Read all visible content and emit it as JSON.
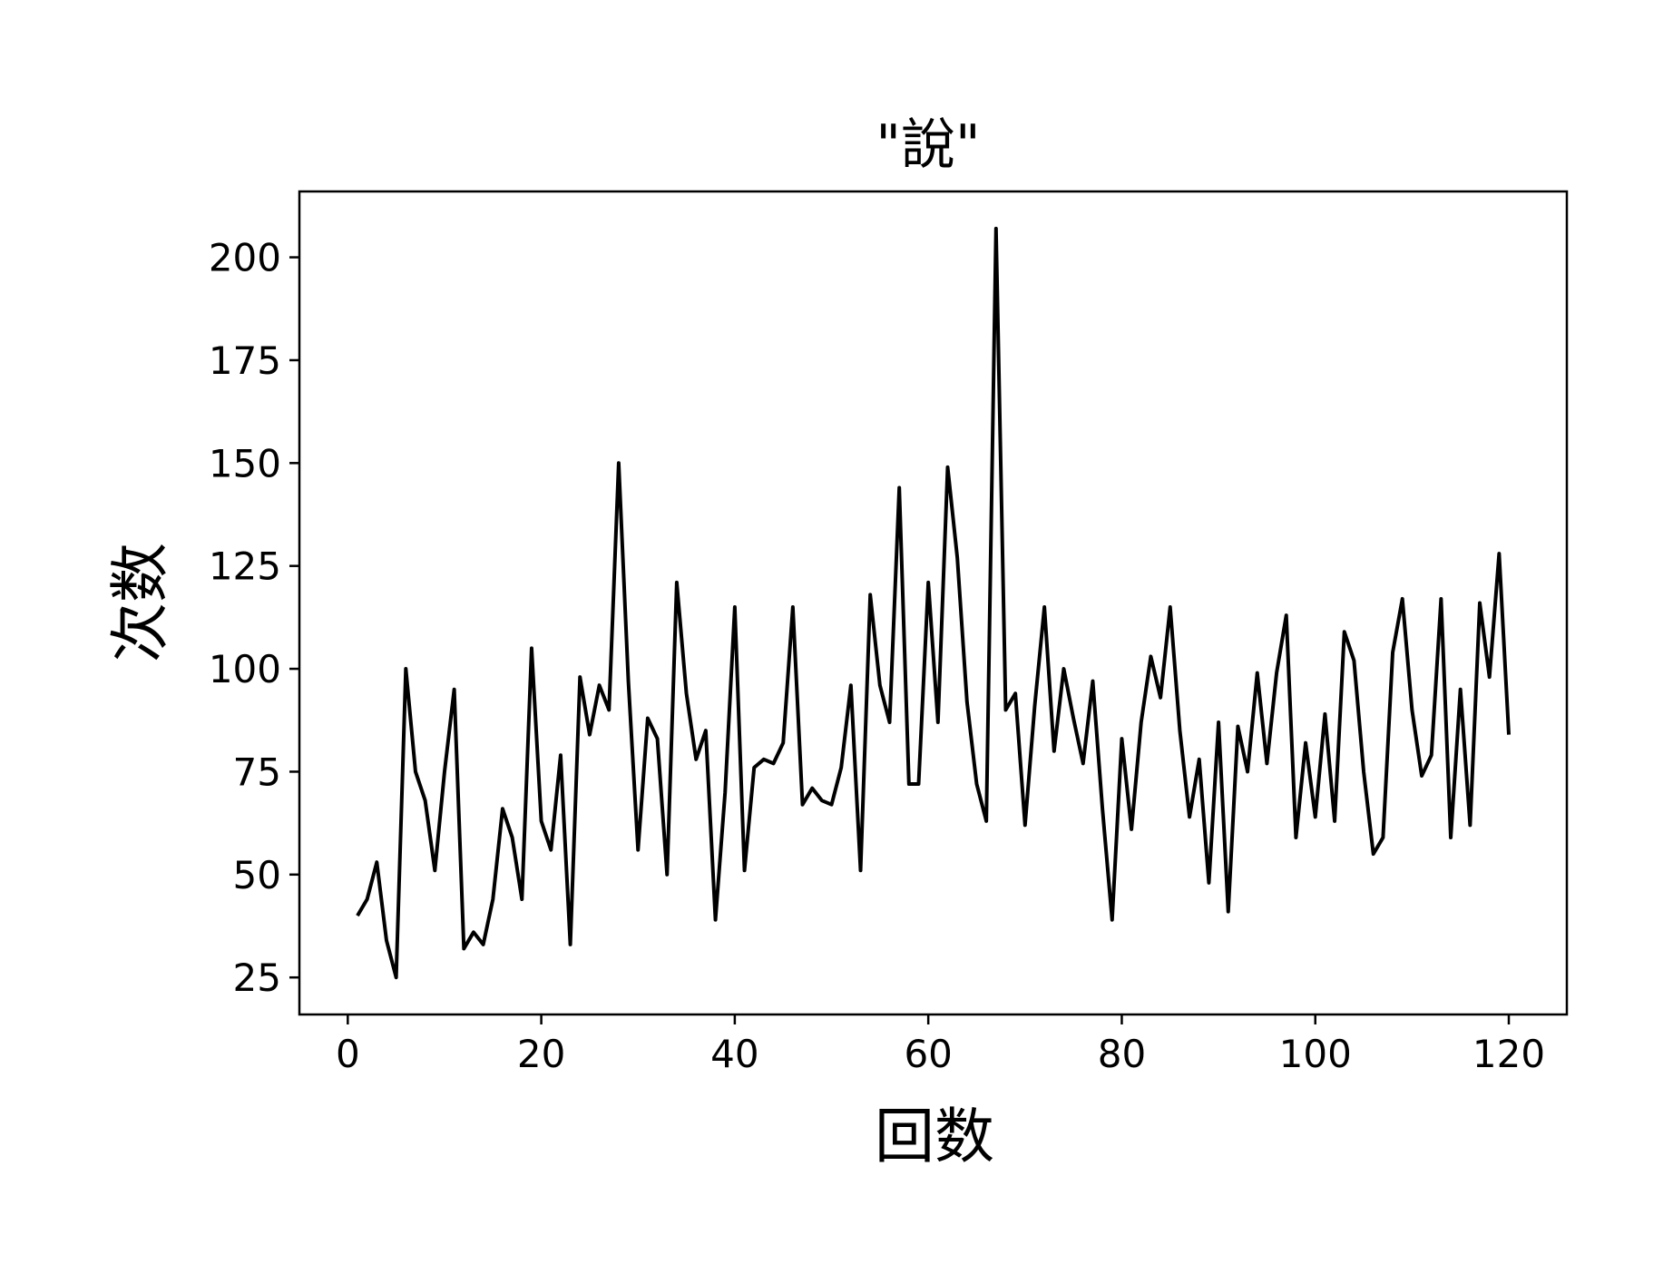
{
  "chart_data": {
    "type": "line",
    "title": "\"說\"",
    "xlabel": "回数",
    "ylabel": "次数",
    "xlim": [
      -5,
      126
    ],
    "ylim": [
      16,
      216
    ],
    "xticks": [
      0,
      20,
      40,
      60,
      80,
      100,
      120
    ],
    "yticks": [
      25,
      50,
      75,
      100,
      125,
      150,
      175,
      200
    ],
    "xtick_labels": [
      "0",
      "20",
      "40",
      "60",
      "80",
      "100",
      "120"
    ],
    "ytick_labels": [
      "25",
      "50",
      "75",
      "100",
      "125",
      "150",
      "175",
      "200"
    ],
    "grid": false,
    "legend": "none",
    "colors": {
      "line": "#000000",
      "axes": "#000000",
      "background": "#ffffff"
    },
    "series": [
      {
        "x": [
          1,
          2,
          3,
          4,
          5,
          6,
          7,
          8,
          9,
          10,
          11,
          12,
          13,
          14,
          15,
          16,
          17,
          18,
          19,
          20,
          21,
          22,
          23,
          24,
          25,
          26,
          27,
          28,
          29,
          30,
          31,
          32,
          33,
          34,
          35,
          36,
          37,
          38,
          39,
          40,
          41,
          42,
          43,
          44,
          45,
          46,
          47,
          48,
          49,
          50,
          51,
          52,
          53,
          54,
          55,
          56,
          57,
          58,
          59,
          60,
          61,
          62,
          63,
          64,
          65,
          66,
          67,
          68,
          69,
          70,
          71,
          72,
          73,
          74,
          75,
          76,
          77,
          78,
          79,
          80,
          81,
          82,
          83,
          84,
          85,
          86,
          87,
          88,
          89,
          90,
          91,
          92,
          93,
          94,
          95,
          96,
          97,
          98,
          99,
          100,
          101,
          102,
          103,
          104,
          105,
          106,
          107,
          108,
          109,
          110,
          111,
          112,
          113,
          114,
          115,
          116,
          117,
          118,
          119,
          120
        ],
        "values": [
          40,
          44,
          53,
          34,
          25,
          100,
          75,
          68,
          51,
          75,
          95,
          32,
          36,
          33,
          44,
          66,
          59,
          44,
          105,
          63,
          56,
          79,
          33,
          98,
          84,
          96,
          90,
          150,
          97,
          56,
          88,
          83,
          50,
          121,
          94,
          78,
          85,
          39,
          70,
          115,
          51,
          76,
          78,
          77,
          82,
          115,
          67,
          71,
          68,
          67,
          76,
          96,
          51,
          118,
          96,
          87,
          144,
          72,
          72,
          121,
          87,
          149,
          127,
          92,
          72,
          63,
          207,
          90,
          94,
          62,
          91,
          115,
          80,
          100,
          88,
          77,
          97,
          66,
          39,
          83,
          61,
          87,
          103,
          93,
          115,
          85,
          64,
          78,
          48,
          87,
          41,
          86,
          75,
          99,
          77,
          99,
          113,
          59,
          82,
          64,
          89,
          63,
          109,
          102,
          75,
          55,
          59,
          104,
          117,
          90,
          74,
          79,
          117,
          59,
          95,
          62,
          116,
          98,
          128,
          84
        ]
      }
    ]
  }
}
